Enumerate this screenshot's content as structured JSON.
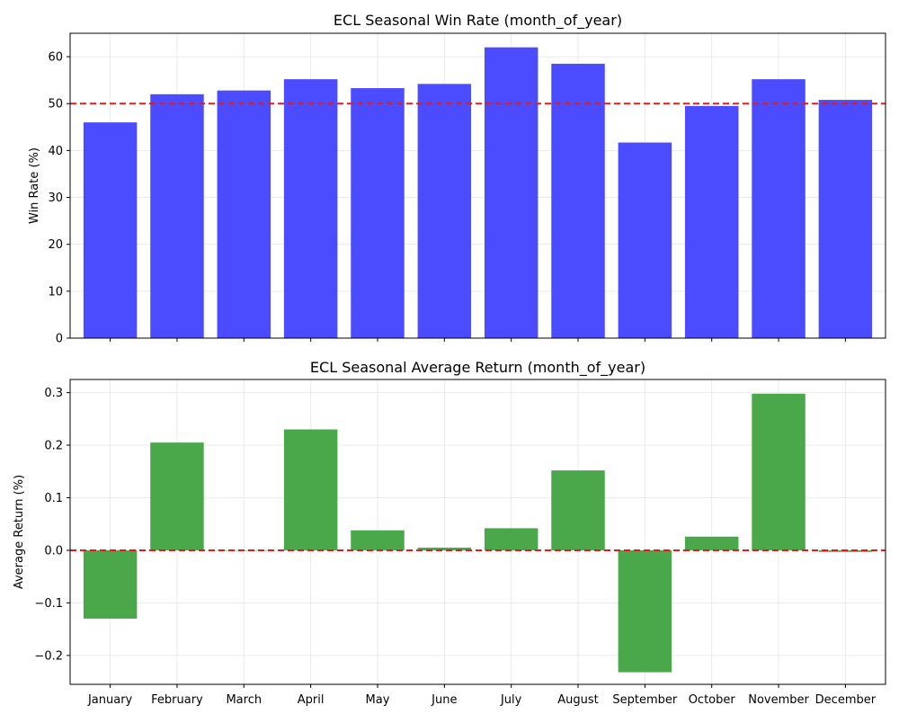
{
  "chart_data": [
    {
      "type": "bar",
      "title": "ECL Seasonal Win Rate (month_of_year)",
      "xlabel": "",
      "ylabel": "Win Rate (%)",
      "categories": [
        "January",
        "February",
        "March",
        "April",
        "May",
        "June",
        "July",
        "August",
        "September",
        "October",
        "November",
        "December"
      ],
      "values": [
        46.0,
        52.0,
        52.8,
        55.2,
        53.3,
        54.2,
        62.0,
        58.5,
        41.7,
        49.5,
        55.2,
        50.8
      ],
      "ylim": [
        0,
        65
      ],
      "yticks": [
        0,
        10,
        20,
        30,
        40,
        50,
        60
      ],
      "reference_line": 50,
      "bar_color": "#4b4bff",
      "reference_color": "#e01c1c",
      "grid": true,
      "show_x_tick_labels": false
    },
    {
      "type": "bar",
      "title": "ECL Seasonal Average Return (month_of_year)",
      "xlabel": "",
      "ylabel": "Average Return (%)",
      "categories": [
        "January",
        "February",
        "March",
        "April",
        "May",
        "June",
        "July",
        "August",
        "September",
        "October",
        "November",
        "December"
      ],
      "values": [
        -0.13,
        0.205,
        0.0,
        0.23,
        0.038,
        0.005,
        0.042,
        0.152,
        -0.232,
        0.026,
        0.298,
        -0.003
      ],
      "ylim": [
        -0.255,
        0.325
      ],
      "yticks": [
        -0.2,
        -0.1,
        0.0,
        0.1,
        0.2,
        0.3
      ],
      "ytick_labels": [
        "−0.2",
        "−0.1",
        "0.0",
        "0.1",
        "0.2",
        "0.3"
      ],
      "reference_line": 0,
      "bar_color": "#4aa84a",
      "reference_color": "#e01c1c",
      "grid": true,
      "show_x_tick_labels": true
    }
  ]
}
